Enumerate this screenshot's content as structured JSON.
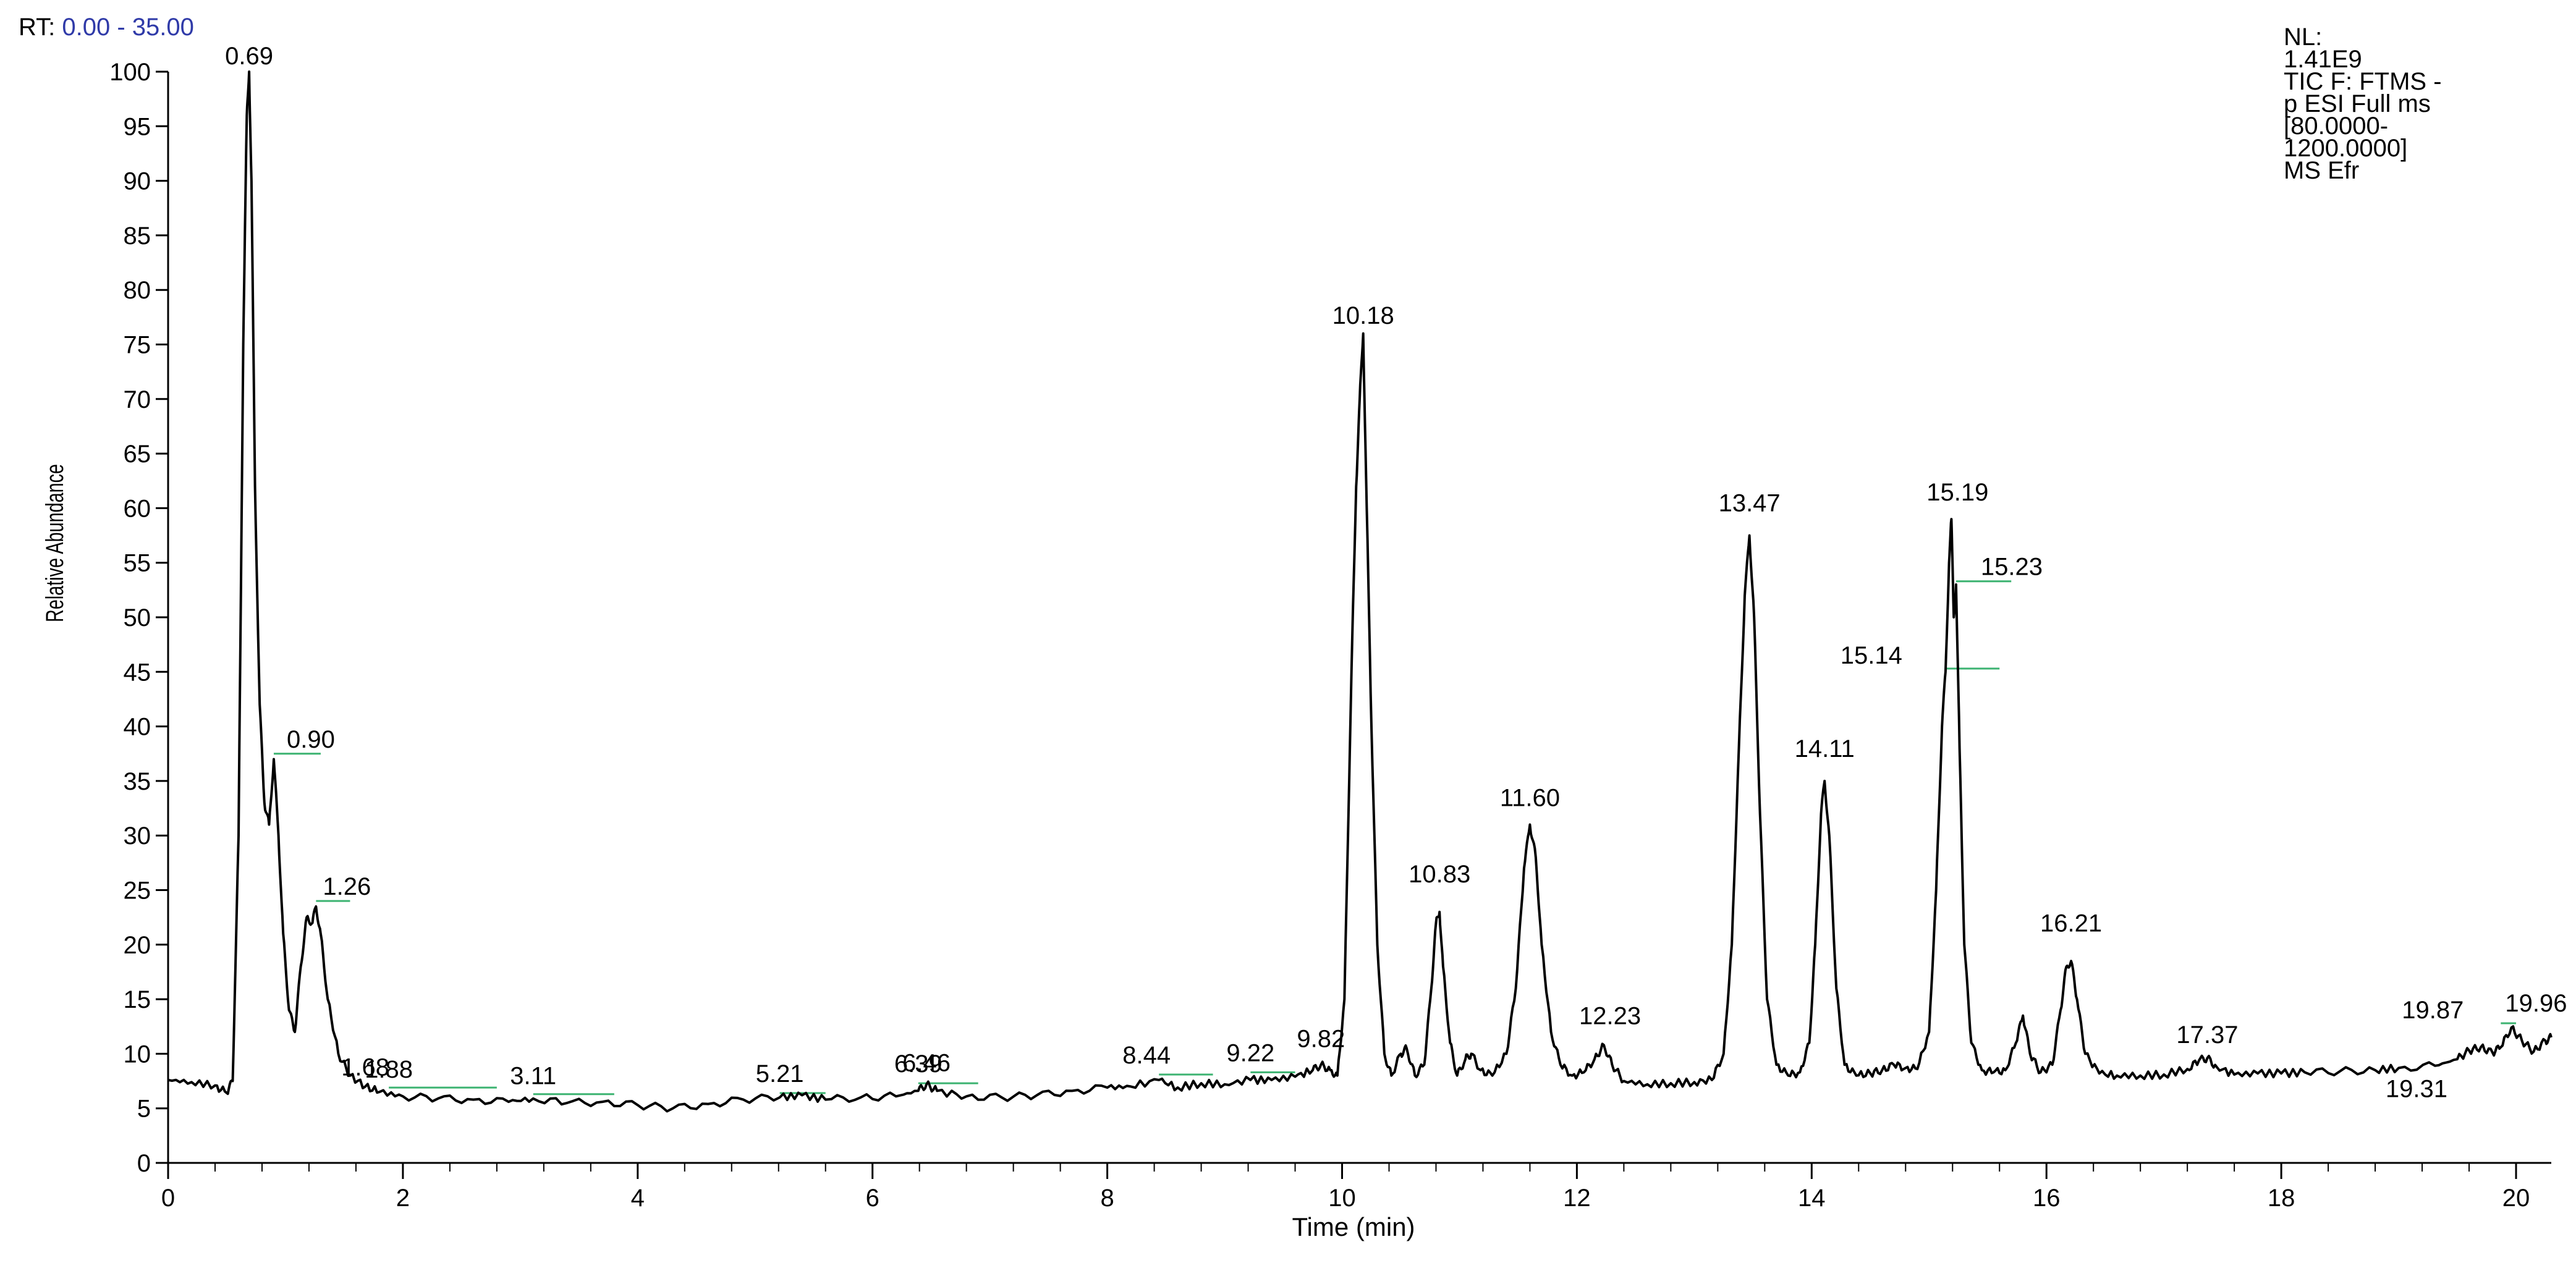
{
  "header": {
    "rt_prefix": "RT:",
    "rt_range": "0.00 - 35.00"
  },
  "info": {
    "lines": [
      "NL:",
      "1.41E9",
      "TIC F: FTMS -",
      "p ESI Full ms",
      "[80.0000-",
      "1200.0000]",
      "MS Efr"
    ]
  },
  "colors": {
    "trace": "#000000",
    "annotation_line": "#3cb371",
    "rt_value": "#2f3aa8"
  },
  "chart_data": {
    "type": "line",
    "xlabel": "Time (min)",
    "ylabel": "Relative Abundance",
    "xlim": [
      0,
      20.3
    ],
    "ylim": [
      0,
      100
    ],
    "xticks": [
      0,
      2,
      4,
      6,
      8,
      10,
      12,
      14,
      16,
      18,
      20
    ],
    "yticks": [
      0,
      5,
      10,
      15,
      20,
      25,
      30,
      35,
      40,
      45,
      50,
      55,
      60,
      65,
      70,
      75,
      80,
      85,
      90,
      95,
      100
    ],
    "grid": false,
    "peaks": [
      {
        "label": "0.69",
        "x": 0.69,
        "y": 100
      },
      {
        "label": "0.90",
        "x": 0.9,
        "y": 37.5
      },
      {
        "label": "1.26",
        "x": 1.26,
        "y": 24
      },
      {
        "label": "1.68",
        "x": 1.68,
        "y": 7
      },
      {
        "label": "1.88",
        "x": 1.88,
        "y": 6.8
      },
      {
        "label": "3.11",
        "x": 3.11,
        "y": 6.2
      },
      {
        "label": "5.21",
        "x": 5.21,
        "y": 6.4
      },
      {
        "label": "6.39",
        "x": 6.39,
        "y": 7.3
      },
      {
        "label": "6.46",
        "x": 6.46,
        "y": 7.4
      },
      {
        "label": "8.44",
        "x": 8.44,
        "y": 8.1
      },
      {
        "label": "9.22",
        "x": 9.22,
        "y": 8.3
      },
      {
        "label": "9.82",
        "x": 9.82,
        "y": 9.6
      },
      {
        "label": "10.18",
        "x": 10.18,
        "y": 76
      },
      {
        "label": "10.83",
        "x": 10.83,
        "y": 23
      },
      {
        "label": "11.60",
        "x": 11.6,
        "y": 31
      },
      {
        "label": "12.23",
        "x": 12.23,
        "y": 11
      },
      {
        "label": "13.47",
        "x": 13.47,
        "y": 58
      },
      {
        "label": "14.11",
        "x": 14.11,
        "y": 35.5
      },
      {
        "label": "15.14",
        "x": 15.14,
        "y": 45.3
      },
      {
        "label": "15.19",
        "x": 15.19,
        "y": 59
      },
      {
        "label": "15.23",
        "x": 15.23,
        "y": 53.3
      },
      {
        "label": "16.21",
        "x": 16.21,
        "y": 18.5
      },
      {
        "label": "17.37",
        "x": 17.37,
        "y": 9.5
      },
      {
        "label": "19.31",
        "x": 19.31,
        "y": 9.2
      },
      {
        "label": "19.87",
        "x": 19.87,
        "y": 12.8
      },
      {
        "label": "19.96",
        "x": 19.96,
        "y": 13.2
      }
    ],
    "trace": [
      [
        0.0,
        7.6
      ],
      [
        0.2,
        7.4
      ],
      [
        0.4,
        7.1
      ],
      [
        0.5,
        6.4
      ],
      [
        0.55,
        7.5
      ],
      [
        0.6,
        30
      ],
      [
        0.64,
        75
      ],
      [
        0.67,
        96
      ],
      [
        0.69,
        100
      ],
      [
        0.71,
        90
      ],
      [
        0.74,
        62
      ],
      [
        0.78,
        42
      ],
      [
        0.82,
        33
      ],
      [
        0.86,
        31
      ],
      [
        0.9,
        37
      ],
      [
        0.94,
        30
      ],
      [
        0.98,
        21
      ],
      [
        1.03,
        14
      ],
      [
        1.08,
        12
      ],
      [
        1.13,
        18
      ],
      [
        1.18,
        22.5
      ],
      [
        1.23,
        22
      ],
      [
        1.26,
        23.5
      ],
      [
        1.3,
        21
      ],
      [
        1.36,
        15
      ],
      [
        1.45,
        10
      ],
      [
        1.55,
        8
      ],
      [
        1.68,
        7
      ],
      [
        1.8,
        6.5
      ],
      [
        2.0,
        6.1
      ],
      [
        2.3,
        5.9
      ],
      [
        2.6,
        5.8
      ],
      [
        2.9,
        5.6
      ],
      [
        3.11,
        5.9
      ],
      [
        3.4,
        5.5
      ],
      [
        3.7,
        5.6
      ],
      [
        4.0,
        5.3
      ],
      [
        4.3,
        5.0
      ],
      [
        4.6,
        5.4
      ],
      [
        4.9,
        5.8
      ],
      [
        5.21,
        6.0
      ],
      [
        5.4,
        6.2
      ],
      [
        5.6,
        5.8
      ],
      [
        5.9,
        6.0
      ],
      [
        6.2,
        6.1
      ],
      [
        6.39,
        6.6
      ],
      [
        6.46,
        7.2
      ],
      [
        6.55,
        6.6
      ],
      [
        6.8,
        6.1
      ],
      [
        7.1,
        6.0
      ],
      [
        7.4,
        6.2
      ],
      [
        7.7,
        6.6
      ],
      [
        8.0,
        6.9
      ],
      [
        8.2,
        7.0
      ],
      [
        8.44,
        7.6
      ],
      [
        8.6,
        6.9
      ],
      [
        8.8,
        7.3
      ],
      [
        9.0,
        7.2
      ],
      [
        9.22,
        7.6
      ],
      [
        9.4,
        7.6
      ],
      [
        9.6,
        7.9
      ],
      [
        9.75,
        8.5
      ],
      [
        9.82,
        9.0
      ],
      [
        9.9,
        8.5
      ],
      [
        9.96,
        8.0
      ],
      [
        10.02,
        15
      ],
      [
        10.08,
        45
      ],
      [
        10.12,
        62
      ],
      [
        10.15,
        70
      ],
      [
        10.18,
        76
      ],
      [
        10.21,
        60
      ],
      [
        10.25,
        40
      ],
      [
        10.3,
        20
      ],
      [
        10.36,
        10
      ],
      [
        10.42,
        8
      ],
      [
        10.5,
        10
      ],
      [
        10.55,
        10.5
      ],
      [
        10.62,
        8
      ],
      [
        10.7,
        9
      ],
      [
        10.76,
        16
      ],
      [
        10.8,
        22
      ],
      [
        10.83,
        23
      ],
      [
        10.86,
        18
      ],
      [
        10.92,
        11
      ],
      [
        10.98,
        8
      ],
      [
        11.05,
        9.5
      ],
      [
        11.1,
        10
      ],
      [
        11.18,
        8.5
      ],
      [
        11.28,
        8
      ],
      [
        11.4,
        10
      ],
      [
        11.48,
        16
      ],
      [
        11.55,
        27
      ],
      [
        11.6,
        31
      ],
      [
        11.65,
        28
      ],
      [
        11.7,
        20
      ],
      [
        11.78,
        12
      ],
      [
        11.86,
        9
      ],
      [
        11.96,
        8
      ],
      [
        12.06,
        8.3
      ],
      [
        12.15,
        9.5
      ],
      [
        12.23,
        10.8
      ],
      [
        12.3,
        9
      ],
      [
        12.4,
        7.5
      ],
      [
        12.6,
        7.2
      ],
      [
        12.8,
        7.3
      ],
      [
        13.0,
        7.4
      ],
      [
        13.15,
        7.6
      ],
      [
        13.25,
        10
      ],
      [
        13.32,
        20
      ],
      [
        13.38,
        38
      ],
      [
        13.43,
        52
      ],
      [
        13.47,
        57.5
      ],
      [
        13.51,
        50
      ],
      [
        13.56,
        32
      ],
      [
        13.62,
        15
      ],
      [
        13.7,
        9
      ],
      [
        13.8,
        8
      ],
      [
        13.9,
        8.3
      ],
      [
        13.98,
        11
      ],
      [
        14.03,
        20
      ],
      [
        14.08,
        32
      ],
      [
        14.11,
        35
      ],
      [
        14.15,
        30
      ],
      [
        14.21,
        16
      ],
      [
        14.28,
        9
      ],
      [
        14.38,
        8
      ],
      [
        14.5,
        8.2
      ],
      [
        14.6,
        8.5
      ],
      [
        14.7,
        9.0
      ],
      [
        14.8,
        8.7
      ],
      [
        14.9,
        8.6
      ],
      [
        15.0,
        12
      ],
      [
        15.06,
        25
      ],
      [
        15.11,
        40
      ],
      [
        15.14,
        45
      ],
      [
        15.17,
        55
      ],
      [
        15.19,
        59
      ],
      [
        15.21,
        50
      ],
      [
        15.23,
        53
      ],
      [
        15.26,
        38
      ],
      [
        15.3,
        20
      ],
      [
        15.36,
        11
      ],
      [
        15.45,
        8.5
      ],
      [
        15.55,
        8.3
      ],
      [
        15.65,
        8.5
      ],
      [
        15.74,
        11
      ],
      [
        15.8,
        13.5
      ],
      [
        15.86,
        10
      ],
      [
        15.95,
        8.3
      ],
      [
        16.05,
        9
      ],
      [
        16.12,
        14
      ],
      [
        16.17,
        18
      ],
      [
        16.21,
        18.5
      ],
      [
        16.26,
        15
      ],
      [
        16.33,
        10
      ],
      [
        16.45,
        8.2
      ],
      [
        16.6,
        8.0
      ],
      [
        16.8,
        8.0
      ],
      [
        17.0,
        8.1
      ],
      [
        17.2,
        8.6
      ],
      [
        17.3,
        9.4
      ],
      [
        17.37,
        9.6
      ],
      [
        17.45,
        8.8
      ],
      [
        17.6,
        8.1
      ],
      [
        17.8,
        8.2
      ],
      [
        18.0,
        8.2
      ],
      [
        18.2,
        8.3
      ],
      [
        18.5,
        8.4
      ],
      [
        18.8,
        8.5
      ],
      [
        19.0,
        8.7
      ],
      [
        19.31,
        8.9
      ],
      [
        19.5,
        9.5
      ],
      [
        19.6,
        10.3
      ],
      [
        19.7,
        10.6
      ],
      [
        19.8,
        10.1
      ],
      [
        19.87,
        10.6
      ],
      [
        19.96,
        12.4
      ],
      [
        20.05,
        11.2
      ],
      [
        20.15,
        10.2
      ],
      [
        20.25,
        11.2
      ],
      [
        20.3,
        11.5
      ]
    ],
    "annotation_lines": [
      {
        "from": 0.9,
        "to": 1.3,
        "y": 37.5
      },
      {
        "from": 1.26,
        "to": 1.55,
        "y": 24
      },
      {
        "from": 1.88,
        "to": 2.8,
        "y": 6.9
      },
      {
        "from": 3.11,
        "to": 3.8,
        "y": 6.3
      },
      {
        "from": 5.21,
        "to": 5.6,
        "y": 6.4
      },
      {
        "from": 6.39,
        "to": 6.9,
        "y": 7.3
      },
      {
        "from": 8.44,
        "to": 8.9,
        "y": 8.1
      },
      {
        "from": 9.22,
        "to": 9.6,
        "y": 8.3
      },
      {
        "from": 15.14,
        "to": 15.6,
        "y": 45.3
      },
      {
        "from": 15.23,
        "to": 15.7,
        "y": 53.3
      },
      {
        "from": 19.87,
        "to": 20.0,
        "y": 12.8
      }
    ]
  }
}
